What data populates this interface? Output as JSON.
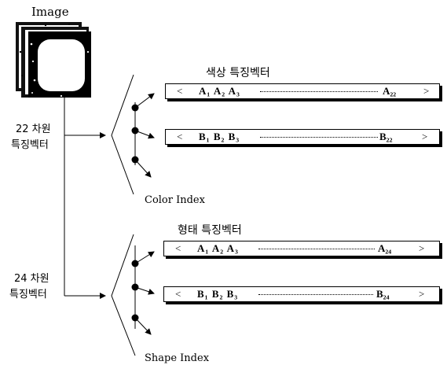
{
  "image": {
    "label": "Image"
  },
  "color_dim": {
    "line1": "22 차원",
    "line2": "특징벡터"
  },
  "shape_dim": {
    "line1": "24 차원",
    "line2": "특징벡터"
  },
  "color_index": {
    "label": "Color Index"
  },
  "shape_index": {
    "label": "Shape Index"
  },
  "color_feature": {
    "title": "색상 특징벡터",
    "vec_a": {
      "open": "<",
      "seq": "A₁ A₂ A₃",
      "last": "A₂₂",
      "close": ">"
    },
    "vec_b": {
      "open": "<",
      "seq": "B₁ B₂ B₃",
      "last": "B₂₂",
      "close": ">"
    }
  },
  "shape_feature": {
    "title": "형태 특징벡터",
    "vec_a": {
      "open": "<",
      "seq": "A₁ A₂ A₃",
      "last": "A₂₄",
      "close": ">"
    },
    "vec_b": {
      "open": "<",
      "seq": "B₁ B₂ B₃",
      "last": "B₂₄",
      "close": ">"
    }
  }
}
